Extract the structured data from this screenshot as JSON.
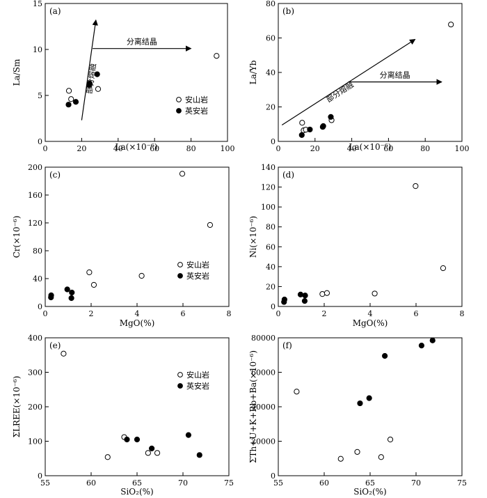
{
  "legend_labels": {
    "andesite": "安山岩",
    "dacite": "英安岩"
  },
  "chart_data": [
    {
      "id": "a",
      "type": "scatter",
      "panel_label": "(a)",
      "xlabel": "La(×10⁻⁶)",
      "ylabel": "La/Sm",
      "xlim": [
        0,
        100
      ],
      "ylim": [
        0,
        15
      ],
      "xticks": [
        0,
        20,
        40,
        60,
        80,
        100
      ],
      "yticks": [
        0,
        5,
        10,
        15
      ],
      "legend": "bottom-right",
      "series": [
        {
          "name": "安山岩",
          "marker": "open-circle",
          "x": [
            13.0,
            14.2,
            29.0,
            94.0
          ],
          "y": [
            5.5,
            4.6,
            5.7,
            9.3
          ]
        },
        {
          "name": "英安岩",
          "marker": "filled-circle",
          "x": [
            12.8,
            16.8,
            24.2,
            24.4,
            28.5
          ],
          "y": [
            4.0,
            4.3,
            6.1,
            6.3,
            7.3
          ]
        }
      ],
      "annotations": [
        {
          "text": "部分熔融",
          "arrow_from": [
            20,
            2.3
          ],
          "arrow_to": [
            27.8,
            13.2
          ]
        },
        {
          "text": "分离结晶",
          "arrow_from": [
            26,
            10.1
          ],
          "arrow_to": [
            80,
            10.1
          ]
        }
      ]
    },
    {
      "id": "b",
      "type": "scatter",
      "panel_label": "(b)",
      "xlabel": "La(×10⁻⁶)",
      "ylabel": "La/Yb",
      "xlim": [
        0,
        100
      ],
      "ylim": [
        0,
        80
      ],
      "xticks": [
        0,
        20,
        40,
        60,
        80,
        100
      ],
      "yticks": [
        0,
        20,
        40,
        60,
        80
      ],
      "series": [
        {
          "name": "安山岩",
          "marker": "open-circle",
          "x": [
            13.0,
            13.8,
            15.0,
            29.0,
            94.0
          ],
          "y": [
            10.8,
            6.4,
            6.8,
            12.3,
            67.8
          ]
        },
        {
          "name": "英安岩",
          "marker": "filled-circle",
          "x": [
            12.8,
            17.2,
            24.2,
            24.5,
            28.6
          ],
          "y": [
            3.7,
            6.9,
            8.4,
            8.9,
            14.2
          ]
        }
      ],
      "annotations": [
        {
          "text": "部分熔融",
          "arrow_from": [
            2,
            9.5
          ],
          "arrow_to": [
            74.5,
            59.2
          ]
        },
        {
          "text": "分离结晶",
          "arrow_from": [
            38,
            34.5
          ],
          "arrow_to": [
            89,
            34.5
          ]
        }
      ]
    },
    {
      "id": "c",
      "type": "scatter",
      "panel_label": "(c)",
      "xlabel": "MgO(%)",
      "ylabel": "Cr(×10⁻⁶)",
      "xlim": [
        0,
        8
      ],
      "ylim": [
        0,
        200
      ],
      "xticks": [
        0,
        2,
        4,
        6,
        8
      ],
      "yticks": [
        0,
        40,
        80,
        120,
        160,
        200
      ],
      "legend": "bottom-right",
      "series": [
        {
          "name": "安山岩",
          "marker": "open-circle",
          "x": [
            1.92,
            2.12,
            4.2,
            5.97,
            7.18
          ],
          "y": [
            49.0,
            31.0,
            44.0,
            190.5,
            117.0
          ]
        },
        {
          "name": "英安岩",
          "marker": "filled-circle",
          "x": [
            0.25,
            0.26,
            0.96,
            1.14,
            1.16
          ],
          "y": [
            13.0,
            16.0,
            24.5,
            12.0,
            20.0
          ]
        }
      ]
    },
    {
      "id": "d",
      "type": "scatter",
      "panel_label": "(d)",
      "xlabel": "MgO(%)",
      "ylabel": "Ni(×10⁻⁶)",
      "xlim": [
        0,
        8
      ],
      "ylim": [
        0,
        140
      ],
      "xticks": [
        0,
        2,
        4,
        6,
        8
      ],
      "yticks": [
        0,
        20,
        40,
        60,
        80,
        100,
        120,
        140
      ],
      "series": [
        {
          "name": "安山岩",
          "marker": "open-circle",
          "x": [
            1.92,
            2.12,
            4.2,
            5.98,
            7.18
          ],
          "y": [
            12.5,
            13.5,
            13.0,
            121.0,
            38.5
          ]
        },
        {
          "name": "英安岩",
          "marker": "filled-circle",
          "x": [
            0.25,
            0.27,
            0.97,
            1.15,
            1.17
          ],
          "y": [
            4.5,
            7.0,
            12.0,
            5.5,
            11.0
          ]
        }
      ]
    },
    {
      "id": "e",
      "type": "scatter",
      "panel_label": "(e)",
      "xlabel": "SiO₂(%)",
      "ylabel": "ΣLREE(×10⁻⁶)",
      "xlim": [
        55,
        75
      ],
      "ylim": [
        0,
        400
      ],
      "xticks": [
        55,
        60,
        65,
        70,
        75
      ],
      "yticks": [
        0,
        100,
        200,
        300,
        400
      ],
      "legend": "top-right",
      "series": [
        {
          "name": "安山岩",
          "marker": "open-circle",
          "x": [
            57.0,
            61.8,
            63.6,
            66.2,
            67.2
          ],
          "y": [
            354.0,
            54.0,
            112.0,
            66.0,
            66.0
          ]
        },
        {
          "name": "英安岩",
          "marker": "filled-circle",
          "x": [
            63.9,
            65.0,
            66.6,
            70.6,
            71.8
          ],
          "y": [
            105.0,
            105.0,
            79.0,
            118.0,
            60.0
          ]
        }
      ]
    },
    {
      "id": "f",
      "type": "scatter",
      "panel_label": "(f)",
      "xlabel": "SiO₂(%)",
      "ylabel": "ΣTh+U+K+Rb+Ba(×10⁻⁶)",
      "xlim": [
        55,
        75
      ],
      "ylim": [
        0,
        80000
      ],
      "xticks": [
        55,
        60,
        65,
        70,
        75
      ],
      "yticks": [
        0,
        20000,
        40000,
        60000,
        80000
      ],
      "series": [
        {
          "name": "安山岩",
          "marker": "open-circle",
          "x": [
            57.0,
            61.8,
            63.6,
            66.2,
            67.2
          ],
          "y": [
            48800,
            9800,
            13800,
            10800,
            21000
          ]
        },
        {
          "name": "英安岩",
          "marker": "filled-circle",
          "x": [
            63.9,
            64.9,
            66.6,
            70.6,
            71.8
          ],
          "y": [
            42000,
            45000,
            69500,
            75500,
            78500
          ]
        }
      ]
    }
  ]
}
